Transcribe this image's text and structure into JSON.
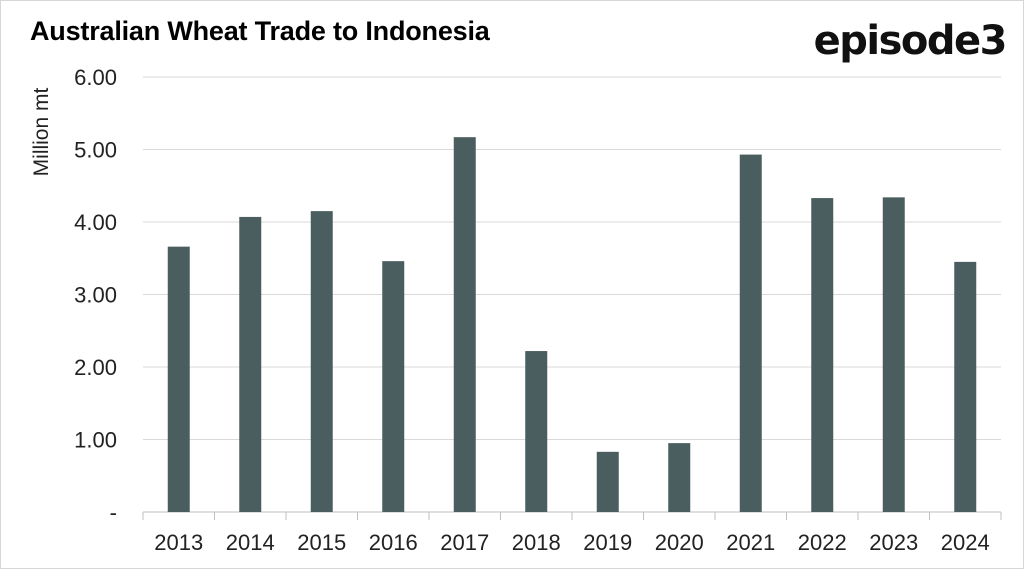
{
  "title": "Australian Wheat Trade to Indonesia",
  "logo_text": "episode3",
  "chart_data": {
    "type": "bar",
    "title": "Australian Wheat Trade to Indonesia",
    "xlabel": "",
    "ylabel": "Million mt",
    "ylim": [
      0,
      6
    ],
    "yticks": [
      {
        "value": 0,
        "label": "-"
      },
      {
        "value": 1,
        "label": "1.00"
      },
      {
        "value": 2,
        "label": "2.00"
      },
      {
        "value": 3,
        "label": "3.00"
      },
      {
        "value": 4,
        "label": "4.00"
      },
      {
        "value": 5,
        "label": "5.00"
      },
      {
        "value": 6,
        "label": "6.00"
      }
    ],
    "grid": true,
    "bar_color": "#4b5e5f",
    "categories": [
      "2013",
      "2014",
      "2015",
      "2016",
      "2017",
      "2018",
      "2019",
      "2020",
      "2021",
      "2022",
      "2023",
      "2024"
    ],
    "values": [
      3.66,
      4.07,
      4.15,
      3.46,
      5.17,
      2.22,
      0.83,
      0.95,
      4.93,
      4.33,
      4.34,
      3.45
    ]
  }
}
